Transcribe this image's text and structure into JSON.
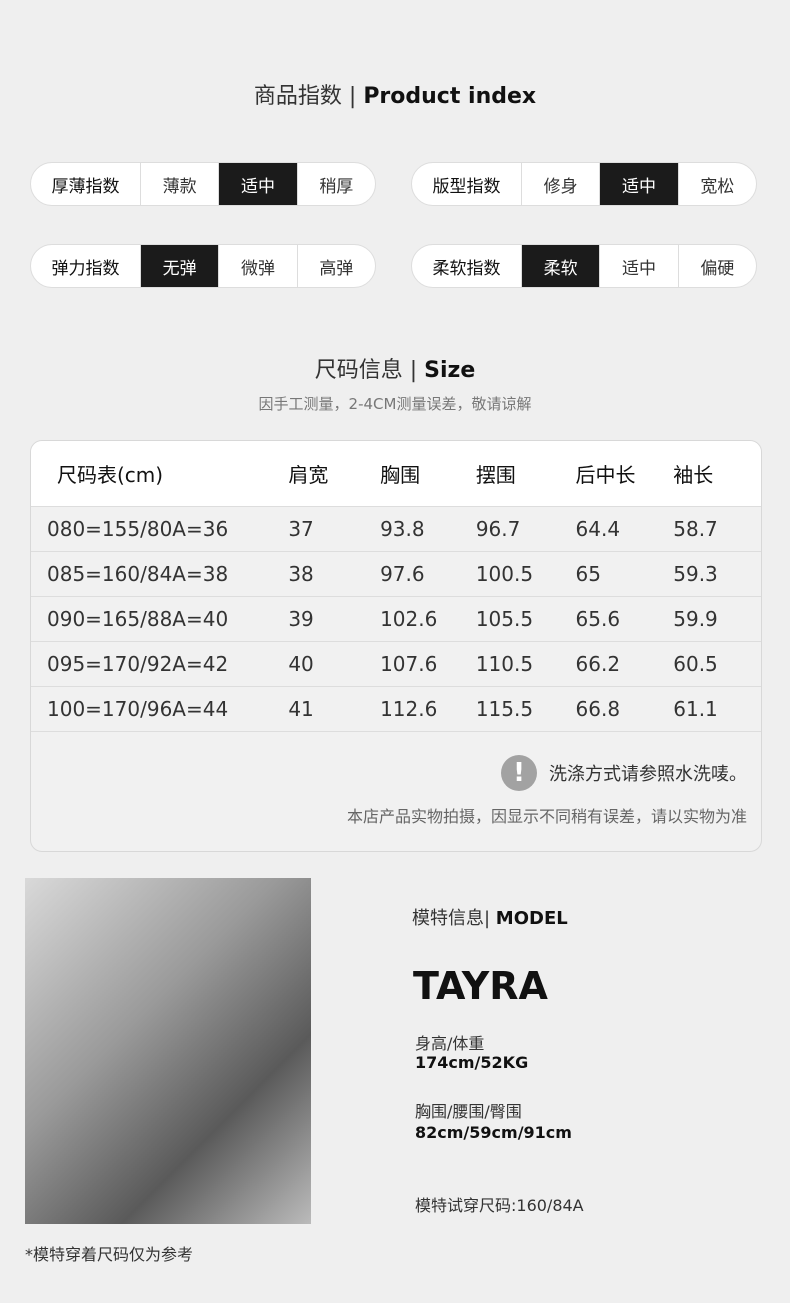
{
  "index_section": {
    "title_cn": "商品指数",
    "title_en": "Product index",
    "groups": [
      {
        "label": "厚薄指数",
        "options": [
          "薄款",
          "适中",
          "稍厚"
        ],
        "selected": 1
      },
      {
        "label": "版型指数",
        "options": [
          "修身",
          "适中",
          "宽松"
        ],
        "selected": 1
      },
      {
        "label": "弹力指数",
        "options": [
          "无弹",
          "微弹",
          "高弹"
        ],
        "selected": 0
      },
      {
        "label": "柔软指数",
        "options": [
          "柔软",
          "适中",
          "偏硬"
        ],
        "selected": 0
      }
    ]
  },
  "size_section": {
    "title_cn": "尺码信息",
    "title_en": "Size",
    "subtitle": "因手工测量，2-4CM测量误差，敬请谅解",
    "headers": [
      "尺码表(cm)",
      "肩宽",
      "胸围",
      "摆围",
      "后中长",
      "袖长"
    ],
    "rows": [
      [
        "080=155/80A=36",
        "37",
        "93.8",
        "96.7",
        "64.4",
        "58.7"
      ],
      [
        "085=160/84A=38",
        "38",
        "97.6",
        "100.5",
        "65",
        "59.3"
      ],
      [
        "090=165/88A=40",
        "39",
        "102.6",
        "105.5",
        "65.6",
        "59.9"
      ],
      [
        "095=170/92A=42",
        "40",
        "107.6",
        "110.5",
        "66.2",
        "60.5"
      ],
      [
        "100=170/96A=44",
        "41",
        "112.6",
        "115.5",
        "66.8",
        "61.1"
      ]
    ],
    "wash_note": "洗涤方式请参照水洗唛。",
    "disclaimer": "本店产品实物拍摄，因显示不同稍有误差，请以实物为准"
  },
  "model": {
    "title_cn": "模特信息",
    "title_en": "MODEL",
    "name": "TAYRA",
    "hw_label": "身高/体重",
    "hw_value": "174cm/52KG",
    "bwh_label": "胸围/腰围/臀围",
    "bwh_value": "82cm/59cm/91cm",
    "try_size": "模特试穿尺码:160/84A",
    "photo_note": "*模特穿着尺码仅为参考"
  }
}
